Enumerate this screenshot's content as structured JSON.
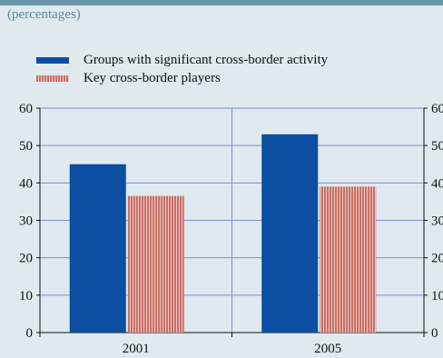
{
  "subtitle": "(percentages)",
  "legend": [
    {
      "label": "Groups with significant cross-border activity",
      "color": "#0b4ea2"
    },
    {
      "label": "Key cross-border players",
      "color": "#c87068"
    }
  ],
  "colors": {
    "background": "#dfe9ee",
    "band": "#6b97aa",
    "grid": "#7b8fd0",
    "series1": "#0b4ea2",
    "series2": "#c87068"
  },
  "chart_data": {
    "type": "bar",
    "title": "",
    "categories": [
      "2001",
      "2005"
    ],
    "series": [
      {
        "name": "Groups with significant cross-border activity",
        "values": [
          45,
          53
        ]
      },
      {
        "name": "Key cross-border players",
        "values": [
          36.5,
          39
        ]
      }
    ],
    "ylim": [
      0,
      60
    ],
    "yticks": [
      "0",
      "10",
      "20",
      "30",
      "40",
      "50",
      "60"
    ],
    "xlabel": "",
    "ylabel": "",
    "grid": true,
    "secondary_axis": true,
    "legend_position": "top-left"
  }
}
